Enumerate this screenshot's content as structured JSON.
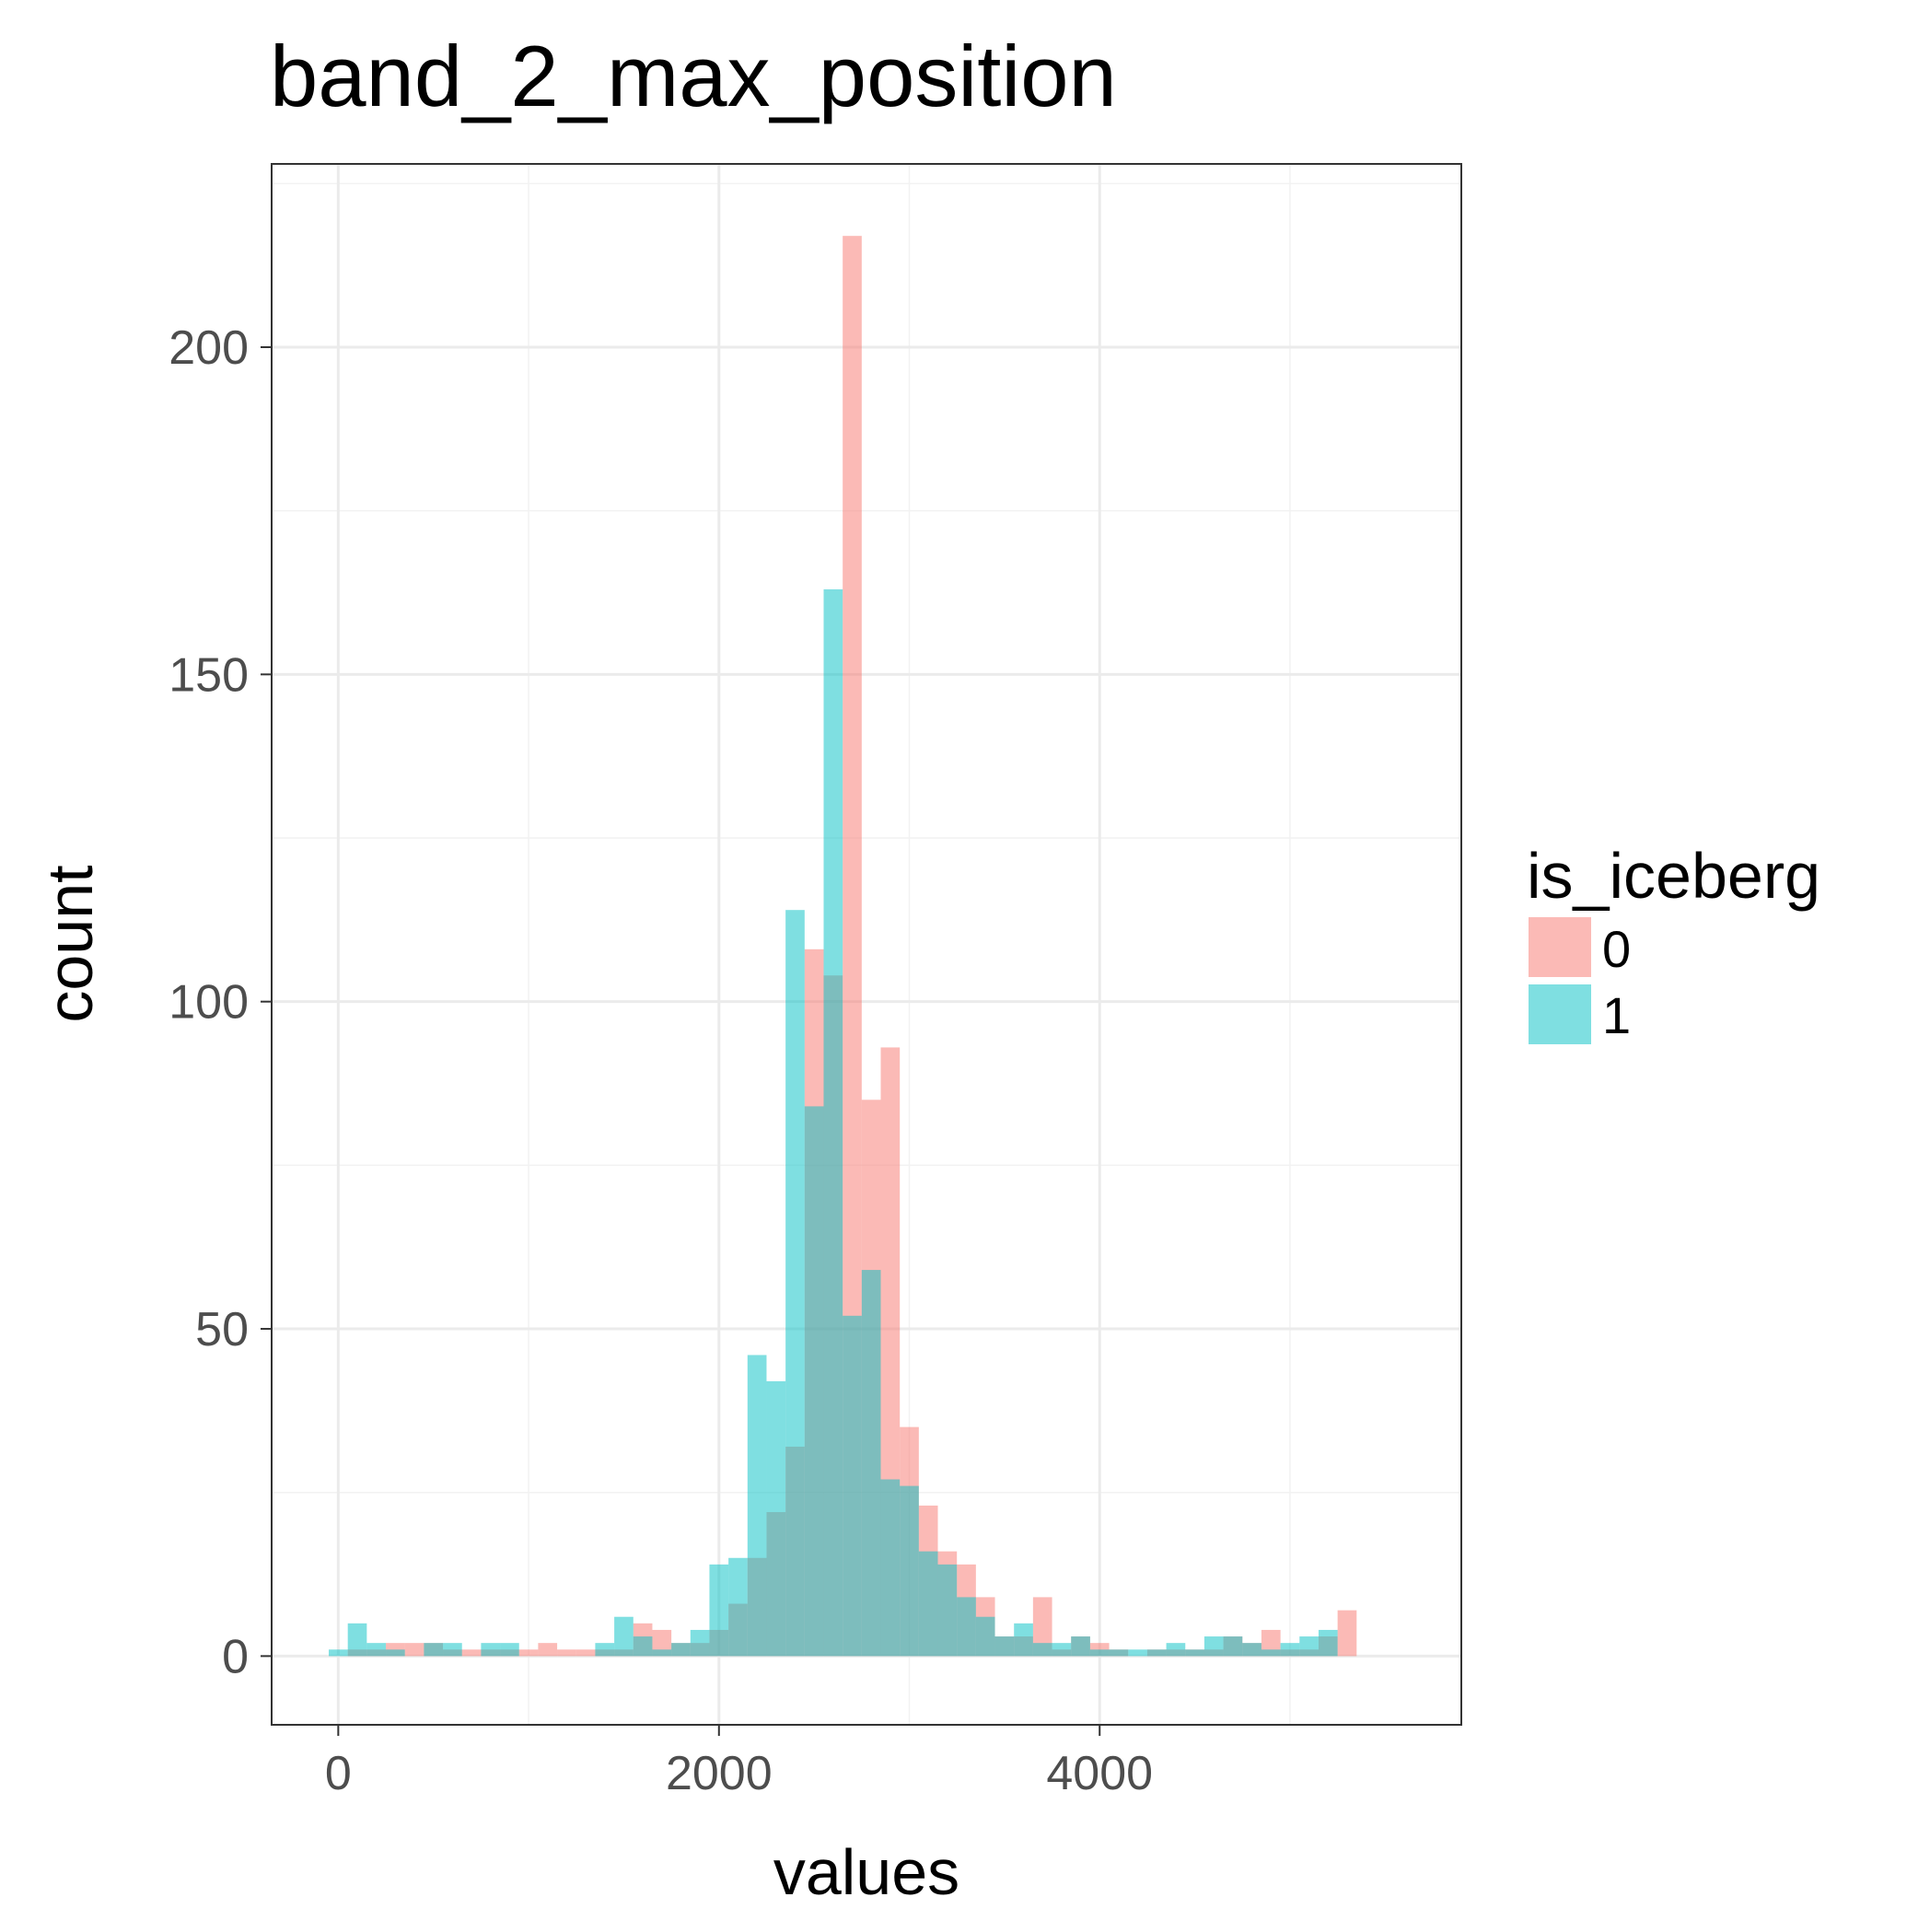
{
  "chart_data": {
    "type": "histogram",
    "title": "band_2_max_position",
    "xlabel": "values",
    "ylabel": "count",
    "xlim": [
      -350,
      5900
    ],
    "ylim": [
      -10.5,
      228
    ],
    "x_ticks": [
      0,
      2000,
      4000
    ],
    "x_tick_labels": [
      "0",
      "2000",
      "4000"
    ],
    "y_ticks": [
      0,
      50,
      100,
      150,
      200
    ],
    "y_tick_labels": [
      "0",
      "50",
      "100",
      "150",
      "200"
    ],
    "x_minor_ticks": [
      1000,
      3000,
      5000
    ],
    "y_minor_ticks": [
      25,
      75,
      125,
      175,
      225
    ],
    "grid": true,
    "bin_width": 100,
    "bin_starts": [
      -50,
      50,
      150,
      250,
      350,
      450,
      550,
      650,
      750,
      850,
      950,
      1050,
      1150,
      1250,
      1350,
      1450,
      1550,
      1650,
      1750,
      1850,
      1950,
      2050,
      2150,
      2250,
      2350,
      2450,
      2550,
      2650,
      2750,
      2850,
      2950,
      3050,
      3150,
      3250,
      3350,
      3450,
      3550,
      3650,
      3750,
      3850,
      3950,
      4050,
      4150,
      4250,
      4350,
      4450,
      4550,
      4650,
      4750,
      4850,
      4950,
      5050,
      5150,
      5250,
      5350,
      5450,
      5550
    ],
    "legend": {
      "title": "is_iceberg",
      "position": "right"
    },
    "series": [
      {
        "name": "0",
        "color": "#F8766D",
        "values": [
          0,
          1,
          1,
          2,
          2,
          2,
          1,
          1,
          1,
          1,
          1,
          2,
          1,
          1,
          1,
          1,
          5,
          4,
          2,
          2,
          4,
          8,
          15,
          22,
          32,
          108,
          104,
          217,
          85,
          93,
          35,
          23,
          16,
          14,
          9,
          3,
          3,
          9,
          1,
          3,
          2,
          1,
          0,
          1,
          1,
          1,
          1,
          3,
          2,
          4,
          1,
          1,
          3,
          7,
          0,
          0,
          0
        ]
      },
      {
        "name": "1",
        "color": "#00BFC4",
        "values": [
          1,
          5,
          2,
          1,
          0,
          2,
          2,
          0,
          2,
          2,
          0,
          0,
          0,
          0,
          2,
          6,
          3,
          1,
          2,
          4,
          14,
          15,
          46,
          42,
          114,
          84,
          163,
          52,
          59,
          27,
          26,
          16,
          14,
          9,
          6,
          3,
          5,
          2,
          2,
          3,
          1,
          1,
          1,
          1,
          2,
          1,
          3,
          3,
          2,
          1,
          2,
          3,
          4,
          0,
          0,
          0,
          0
        ]
      }
    ]
  }
}
